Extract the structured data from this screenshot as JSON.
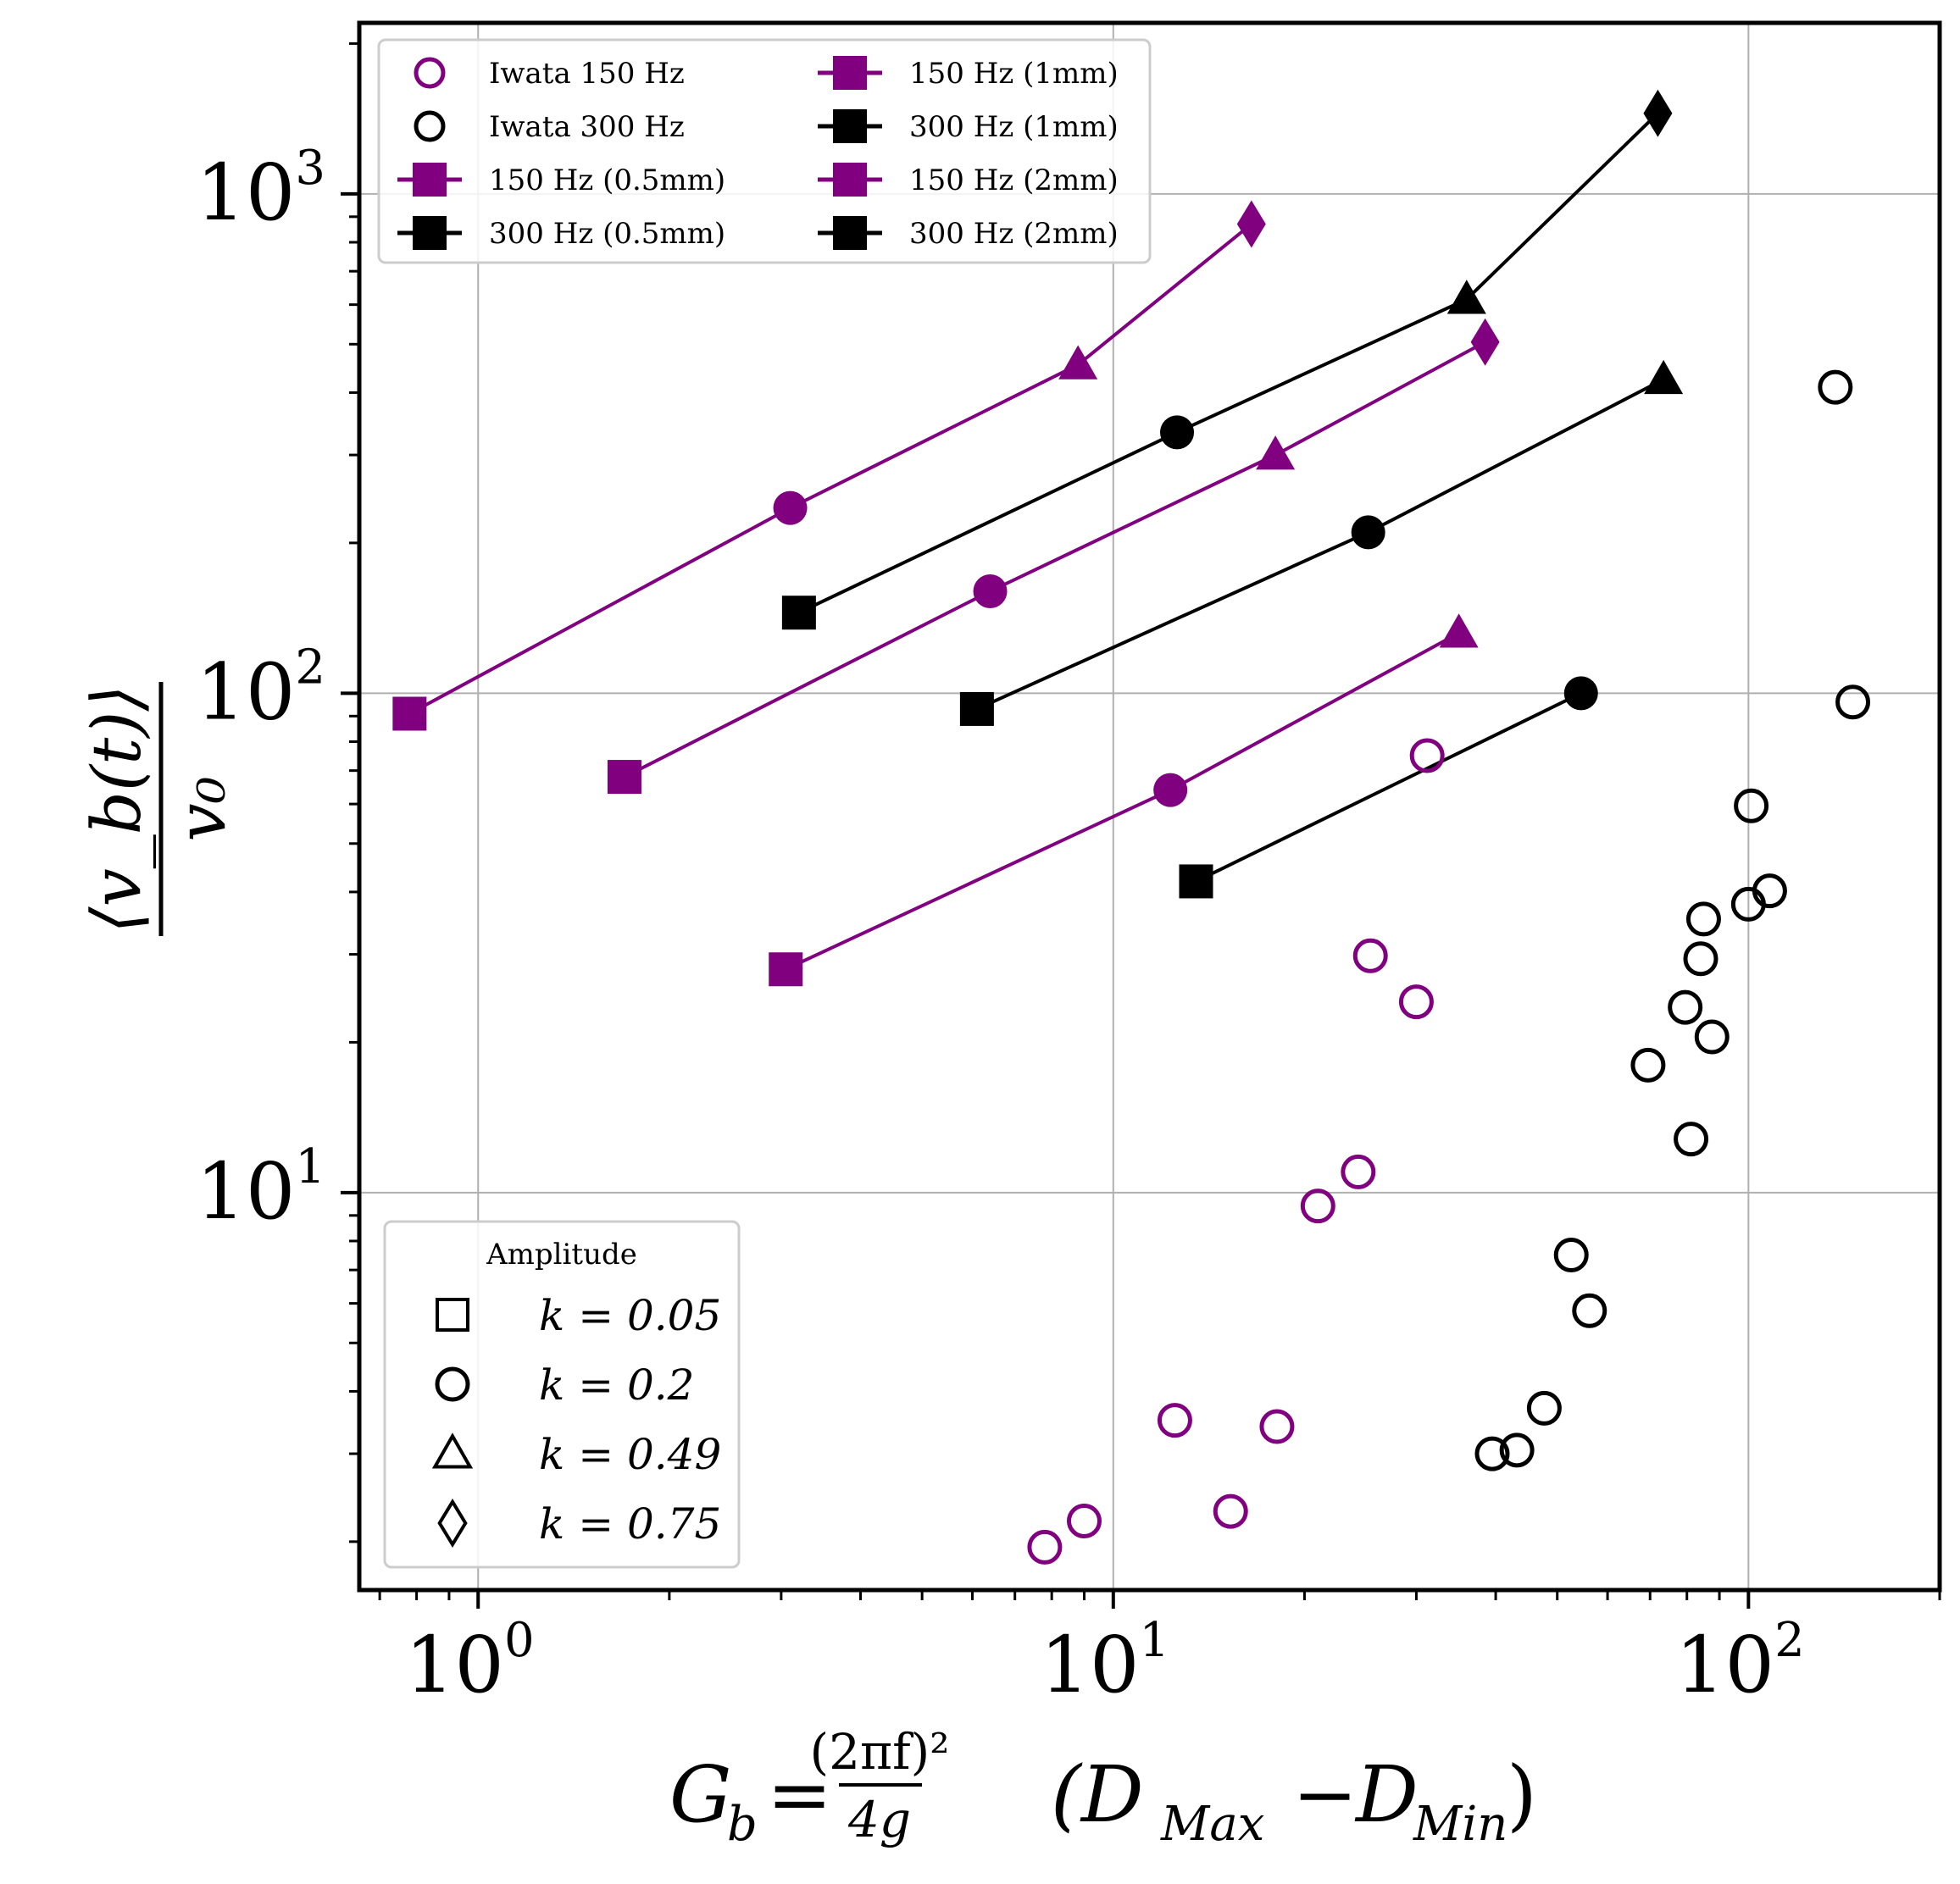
{
  "chart_data": {
    "type": "scatter",
    "x_scale": "log",
    "y_scale": "log",
    "xlim": [
      0.65,
      200
    ],
    "ylim": [
      1.6,
      2200
    ],
    "grid": true,
    "xlabel": "G_b = (2πf)²/4g (D_Max − D_Min)",
    "ylabel": "⟨v_b(t)⟩ / v_0",
    "x_ticks": [
      {
        "value": 1,
        "base": "10",
        "exp": "0"
      },
      {
        "value": 10,
        "base": "10",
        "exp": "1"
      },
      {
        "value": 100,
        "base": "10",
        "exp": "2"
      }
    ],
    "y_ticks": [
      {
        "value": 10,
        "base": "10",
        "exp": "1"
      },
      {
        "value": 100,
        "base": "10",
        "exp": "2"
      },
      {
        "value": 1000,
        "base": "10",
        "exp": "3"
      }
    ],
    "colors": {
      "purple": "#800080",
      "black": "#000000"
    },
    "iwata_series": [
      {
        "name": "Iwata 150 Hz",
        "color": "#800080",
        "points": [
          [
            7.8,
            1.95
          ],
          [
            9.0,
            2.2
          ],
          [
            12.5,
            3.5
          ],
          [
            15.3,
            2.3
          ],
          [
            18.1,
            3.4
          ],
          [
            21.0,
            9.4
          ],
          [
            24.3,
            11.0
          ],
          [
            25.4,
            29.8
          ],
          [
            30.0,
            24.1
          ],
          [
            31.2,
            75.0
          ]
        ]
      },
      {
        "name": "Iwata 300 Hz",
        "color": "#000000",
        "points": [
          [
            39.5,
            3.0
          ],
          [
            43.2,
            3.05
          ],
          [
            47.7,
            3.7
          ],
          [
            52.6,
            7.5
          ],
          [
            56.2,
            5.8
          ],
          [
            69.5,
            18.0
          ],
          [
            79.5,
            23.5
          ],
          [
            81.2,
            12.8
          ],
          [
            84.1,
            29.4
          ],
          [
            85.0,
            35.3
          ],
          [
            87.6,
            20.5
          ],
          [
            100.0,
            37.8
          ],
          [
            101.0,
            59.5
          ],
          [
            108.0,
            40.2
          ],
          [
            137.0,
            410.0
          ],
          [
            146.0,
            96.0
          ]
        ]
      }
    ],
    "line_series": [
      {
        "name": "150 Hz (0.5mm)",
        "color": "#800080",
        "points": [
          {
            "x": 0.78,
            "y": 91,
            "m": "square"
          },
          {
            "x": 3.1,
            "y": 235,
            "m": "circle"
          },
          {
            "x": 8.8,
            "y": 455,
            "m": "triangle"
          },
          {
            "x": 16.5,
            "y": 870,
            "m": "diamond"
          }
        ]
      },
      {
        "name": "300 Hz (0.5mm)",
        "color": "#000000",
        "points": [
          {
            "x": 3.2,
            "y": 145,
            "m": "square"
          },
          {
            "x": 12.6,
            "y": 333,
            "m": "circle"
          },
          {
            "x": 36.0,
            "y": 615,
            "m": "triangle"
          },
          {
            "x": 72.0,
            "y": 1450,
            "m": "diamond"
          }
        ]
      },
      {
        "name": "150 Hz (1mm)",
        "color": "#800080",
        "points": [
          {
            "x": 1.7,
            "y": 68,
            "m": "square"
          },
          {
            "x": 6.4,
            "y": 160,
            "m": "circle"
          },
          {
            "x": 18.0,
            "y": 300,
            "m": "triangle"
          },
          {
            "x": 38.5,
            "y": 505,
            "m": "diamond"
          }
        ]
      },
      {
        "name": "300 Hz (1mm)",
        "color": "#000000",
        "points": [
          {
            "x": 6.1,
            "y": 93,
            "m": "square"
          },
          {
            "x": 25.2,
            "y": 210,
            "m": "circle"
          },
          {
            "x": 73.5,
            "y": 425,
            "m": "triangle"
          }
        ]
      },
      {
        "name": "150 Hz (2mm)",
        "color": "#800080",
        "points": [
          {
            "x": 3.05,
            "y": 28,
            "m": "square"
          },
          {
            "x": 12.3,
            "y": 64,
            "m": "circle"
          },
          {
            "x": 35.0,
            "y": 132,
            "m": "triangle"
          }
        ]
      },
      {
        "name": "300 Hz (2mm)",
        "color": "#000000",
        "points": [
          {
            "x": 13.5,
            "y": 42,
            "m": "square"
          },
          {
            "x": 54.5,
            "y": 100,
            "m": "circle"
          }
        ]
      }
    ],
    "legend_series": [
      {
        "label": "Iwata 150 Hz",
        "marker": "open-circle",
        "color": "#800080"
      },
      {
        "label": "Iwata 300 Hz",
        "marker": "open-circle",
        "color": "#000000"
      },
      {
        "label": "150 Hz (0.5mm)",
        "marker": "line-square",
        "color": "#800080"
      },
      {
        "label": "300 Hz (0.5mm)",
        "marker": "line-square",
        "color": "#000000"
      },
      {
        "label": "150 Hz (1mm)",
        "marker": "line-square",
        "color": "#800080"
      },
      {
        "label": "300 Hz (1mm)",
        "marker": "line-square",
        "color": "#000000"
      },
      {
        "label": "150 Hz (2mm)",
        "marker": "line-square",
        "color": "#800080"
      },
      {
        "label": "300 Hz (2mm)",
        "marker": "line-square",
        "color": "#000000"
      }
    ],
    "legend_amplitude": {
      "title": "Amplitude",
      "entries": [
        {
          "marker": "square",
          "label": "k = 0.05"
        },
        {
          "marker": "circle",
          "label": "k = 0.2"
        },
        {
          "marker": "triangle",
          "label": "k = 0.49"
        },
        {
          "marker": "diamond",
          "label": "k = 0.75"
        }
      ]
    }
  }
}
